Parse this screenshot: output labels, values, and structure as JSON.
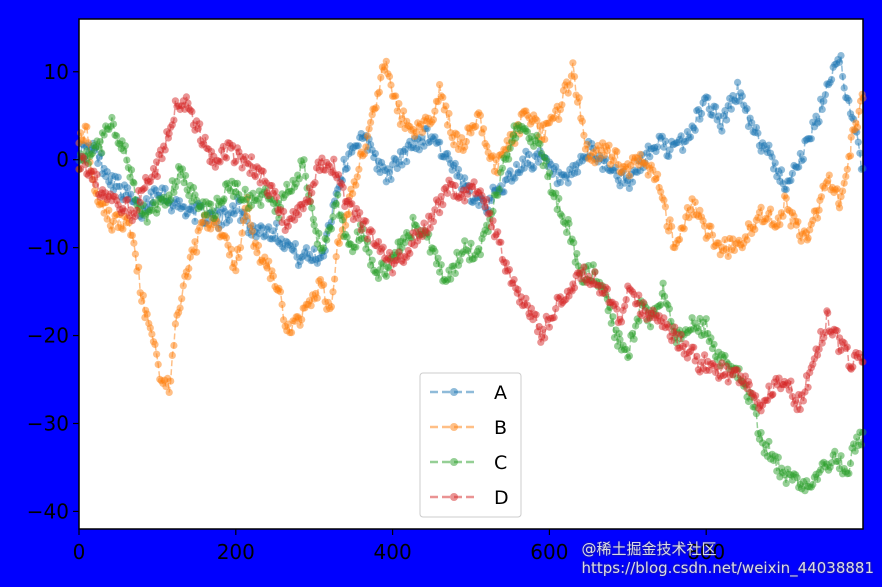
{
  "chart_data": {
    "type": "line",
    "marker": "circle",
    "linestyle": "dashed",
    "alpha": 0.5,
    "xlim": [
      0,
      1000
    ],
    "ylim": [
      -42,
      16
    ],
    "xticks": [
      0,
      200,
      400,
      600,
      800
    ],
    "yticks": [
      -40,
      -30,
      -20,
      -10,
      0,
      10
    ],
    "xtick_labels": [
      "0",
      "200",
      "400",
      "600",
      "800"
    ],
    "ytick_labels": [
      "−40",
      "−30",
      "−20",
      "−10",
      "0",
      "10"
    ],
    "grid": false,
    "legend_position": "lower-center",
    "series": [
      {
        "name": "A",
        "color": "#1f77b4",
        "keypoints": [
          [
            0,
            1
          ],
          [
            20,
            1
          ],
          [
            40,
            -2
          ],
          [
            60,
            -4
          ],
          [
            80,
            -6
          ],
          [
            100,
            -3
          ],
          [
            120,
            -5
          ],
          [
            150,
            -6
          ],
          [
            180,
            -7
          ],
          [
            200,
            -5
          ],
          [
            220,
            -8
          ],
          [
            250,
            -8
          ],
          [
            280,
            -11
          ],
          [
            310,
            -11
          ],
          [
            330,
            -3
          ],
          [
            350,
            2
          ],
          [
            370,
            2
          ],
          [
            390,
            -2
          ],
          [
            410,
            0
          ],
          [
            430,
            2
          ],
          [
            450,
            3
          ],
          [
            470,
            0
          ],
          [
            490,
            -3
          ],
          [
            520,
            -5
          ],
          [
            550,
            -2
          ],
          [
            570,
            0
          ],
          [
            590,
            0
          ],
          [
            620,
            -3
          ],
          [
            650,
            1
          ],
          [
            680,
            -1
          ],
          [
            700,
            -3
          ],
          [
            720,
            0
          ],
          [
            740,
            2
          ],
          [
            760,
            1
          ],
          [
            780,
            3
          ],
          [
            800,
            7
          ],
          [
            820,
            4
          ],
          [
            840,
            8
          ],
          [
            860,
            3
          ],
          [
            880,
            1
          ],
          [
            900,
            -3
          ],
          [
            910,
            -1
          ],
          [
            920,
            0
          ],
          [
            940,
            4
          ],
          [
            960,
            10
          ],
          [
            970,
            12
          ],
          [
            980,
            7
          ],
          [
            990,
            3
          ],
          [
            1000,
            -1
          ]
        ]
      },
      {
        "name": "B",
        "color": "#ff7f0e",
        "keypoints": [
          [
            0,
            3
          ],
          [
            10,
            3
          ],
          [
            20,
            -3
          ],
          [
            40,
            -7
          ],
          [
            60,
            -7
          ],
          [
            70,
            -10
          ],
          [
            85,
            -18
          ],
          [
            95,
            -20
          ],
          [
            105,
            -25
          ],
          [
            115,
            -26
          ],
          [
            125,
            -18
          ],
          [
            140,
            -12
          ],
          [
            160,
            -7
          ],
          [
            180,
            -8
          ],
          [
            200,
            -12
          ],
          [
            215,
            -5
          ],
          [
            225,
            -10
          ],
          [
            240,
            -12
          ],
          [
            255,
            -15
          ],
          [
            265,
            -20
          ],
          [
            280,
            -18
          ],
          [
            300,
            -16
          ],
          [
            310,
            -14
          ],
          [
            320,
            -18
          ],
          [
            330,
            -10
          ],
          [
            345,
            -5
          ],
          [
            360,
            0
          ],
          [
            375,
            5
          ],
          [
            390,
            11
          ],
          [
            400,
            8
          ],
          [
            410,
            5
          ],
          [
            430,
            3
          ],
          [
            450,
            5
          ],
          [
            460,
            8
          ],
          [
            480,
            2
          ],
          [
            490,
            2
          ],
          [
            510,
            5
          ],
          [
            530,
            -1
          ],
          [
            550,
            2
          ],
          [
            570,
            5
          ],
          [
            590,
            3
          ],
          [
            610,
            5
          ],
          [
            630,
            10
          ],
          [
            650,
            0
          ],
          [
            670,
            1
          ],
          [
            700,
            -1
          ],
          [
            720,
            0
          ],
          [
            740,
            -3
          ],
          [
            760,
            -10
          ],
          [
            780,
            -5
          ],
          [
            800,
            -8
          ],
          [
            820,
            -10
          ],
          [
            840,
            -10
          ],
          [
            860,
            -7
          ],
          [
            880,
            -6
          ],
          [
            890,
            -8
          ],
          [
            900,
            -5
          ],
          [
            915,
            -8
          ],
          [
            930,
            -9
          ],
          [
            945,
            -5
          ],
          [
            955,
            -2
          ],
          [
            970,
            -5
          ],
          [
            985,
            2
          ],
          [
            1000,
            7
          ]
        ]
      },
      {
        "name": "C",
        "color": "#2ca02c",
        "keypoints": [
          [
            0,
            0
          ],
          [
            15,
            0
          ],
          [
            30,
            2
          ],
          [
            40,
            4
          ],
          [
            55,
            2
          ],
          [
            70,
            -3
          ],
          [
            85,
            -7
          ],
          [
            100,
            -5
          ],
          [
            115,
            -4
          ],
          [
            130,
            -1
          ],
          [
            150,
            -5
          ],
          [
            170,
            -6
          ],
          [
            185,
            -4
          ],
          [
            200,
            -3
          ],
          [
            220,
            -5
          ],
          [
            240,
            -4
          ],
          [
            255,
            -6
          ],
          [
            265,
            -3
          ],
          [
            275,
            -3
          ],
          [
            285,
            0
          ],
          [
            300,
            -8
          ],
          [
            310,
            -10
          ],
          [
            330,
            -5
          ],
          [
            345,
            -10
          ],
          [
            360,
            -8
          ],
          [
            380,
            -13
          ],
          [
            395,
            -12
          ],
          [
            410,
            -10
          ],
          [
            430,
            -7
          ],
          [
            450,
            -10
          ],
          [
            470,
            -14
          ],
          [
            490,
            -10
          ],
          [
            510,
            -11
          ],
          [
            530,
            -5
          ],
          [
            540,
            -1
          ],
          [
            555,
            3
          ],
          [
            570,
            4
          ],
          [
            590,
            1
          ],
          [
            600,
            -2
          ],
          [
            610,
            -5
          ],
          [
            625,
            -8
          ],
          [
            640,
            -13
          ],
          [
            660,
            -13
          ],
          [
            675,
            -17
          ],
          [
            690,
            -21
          ],
          [
            700,
            -22
          ],
          [
            715,
            -17
          ],
          [
            730,
            -18
          ],
          [
            745,
            -15
          ],
          [
            760,
            -20
          ],
          [
            780,
            -19
          ],
          [
            800,
            -19
          ],
          [
            820,
            -23
          ],
          [
            840,
            -24
          ],
          [
            860,
            -28
          ],
          [
            870,
            -32
          ],
          [
            880,
            -33
          ],
          [
            900,
            -36
          ],
          [
            920,
            -37
          ],
          [
            940,
            -36
          ],
          [
            960,
            -34
          ],
          [
            980,
            -35
          ],
          [
            990,
            -33
          ],
          [
            1000,
            -31
          ]
        ]
      },
      {
        "name": "D",
        "color": "#d62728",
        "keypoints": [
          [
            0,
            0
          ],
          [
            15,
            -1
          ],
          [
            30,
            -4
          ],
          [
            50,
            -5
          ],
          [
            70,
            -6
          ],
          [
            85,
            -2
          ],
          [
            100,
            -1
          ],
          [
            115,
            3
          ],
          [
            125,
            7
          ],
          [
            140,
            6
          ],
          [
            155,
            3
          ],
          [
            170,
            0
          ],
          [
            190,
            1
          ],
          [
            210,
            0
          ],
          [
            225,
            -1
          ],
          [
            240,
            -3
          ],
          [
            255,
            -5
          ],
          [
            265,
            -8
          ],
          [
            280,
            -6
          ],
          [
            295,
            -4
          ],
          [
            310,
            0
          ],
          [
            325,
            -1
          ],
          [
            340,
            -5
          ],
          [
            360,
            -7
          ],
          [
            380,
            -10
          ],
          [
            400,
            -12
          ],
          [
            420,
            -10
          ],
          [
            440,
            -8
          ],
          [
            460,
            -5
          ],
          [
            470,
            -3
          ],
          [
            490,
            -4
          ],
          [
            510,
            -3
          ],
          [
            530,
            -8
          ],
          [
            545,
            -12
          ],
          [
            560,
            -15
          ],
          [
            575,
            -17
          ],
          [
            590,
            -20
          ],
          [
            600,
            -18
          ],
          [
            615,
            -16
          ],
          [
            630,
            -14
          ],
          [
            650,
            -13
          ],
          [
            670,
            -15
          ],
          [
            690,
            -18
          ],
          [
            700,
            -15
          ],
          [
            720,
            -17
          ],
          [
            740,
            -18
          ],
          [
            760,
            -20
          ],
          [
            790,
            -23
          ],
          [
            820,
            -24
          ],
          [
            840,
            -25
          ],
          [
            855,
            -26
          ],
          [
            870,
            -28
          ],
          [
            885,
            -26
          ],
          [
            900,
            -25
          ],
          [
            920,
            -28
          ],
          [
            940,
            -22
          ],
          [
            955,
            -18
          ],
          [
            970,
            -21
          ],
          [
            985,
            -23
          ],
          [
            1000,
            -23
          ]
        ]
      }
    ]
  },
  "watermark": {
    "site_text": "@稀土掘金技术社区",
    "url_text": "https://blog.csdn.net/weixin_44038881"
  }
}
